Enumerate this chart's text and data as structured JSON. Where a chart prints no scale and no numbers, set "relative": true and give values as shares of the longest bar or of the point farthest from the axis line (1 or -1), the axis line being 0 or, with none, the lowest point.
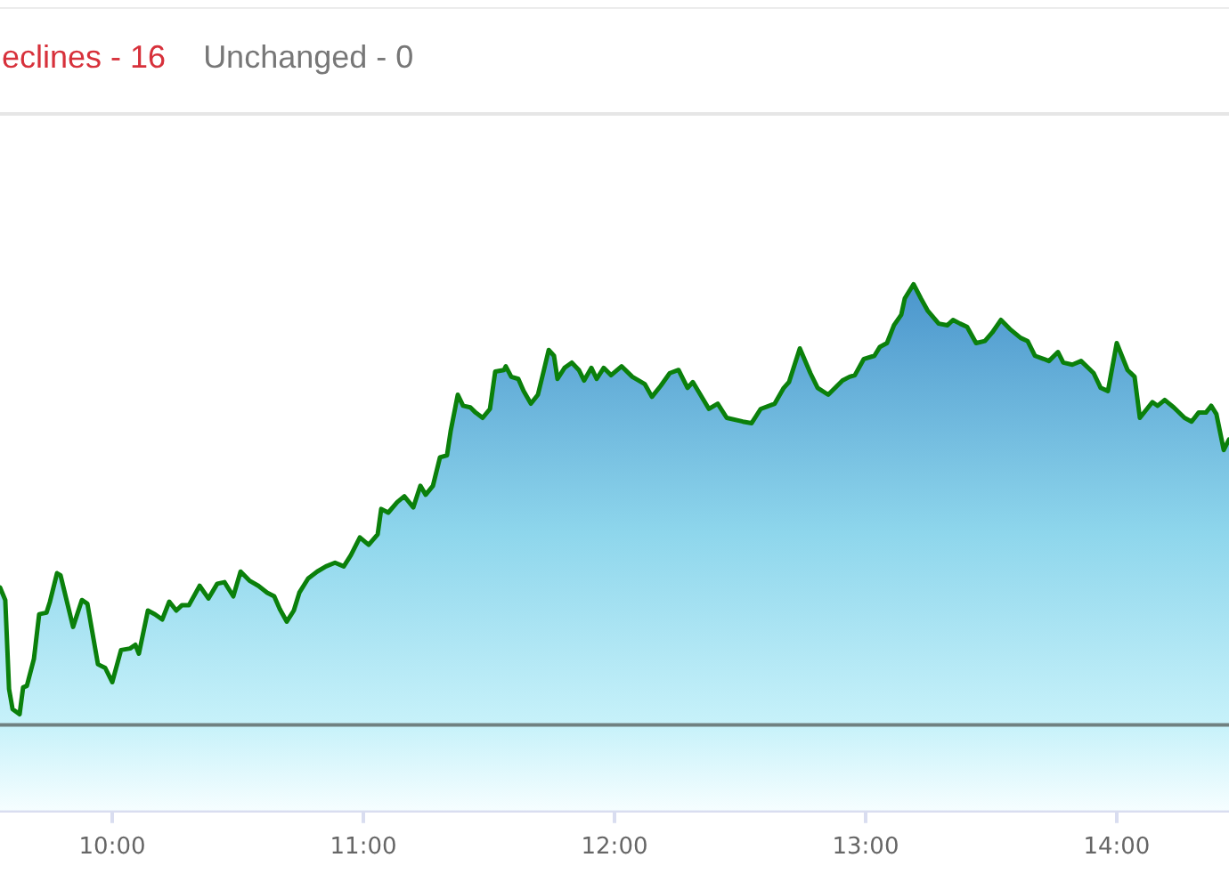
{
  "chart_data": {
    "type": "area",
    "annotations": [
      "eclines - 16",
      "Unchanged - 0"
    ],
    "relative": true,
    "x": [
      9.553,
      9.574,
      9.589,
      9.603,
      9.631,
      9.645,
      9.66,
      9.688,
      9.709,
      9.738,
      9.752,
      9.78,
      9.794,
      9.844,
      9.879,
      9.901,
      9.943,
      9.972,
      10.0,
      10.035,
      10.071,
      10.092,
      10.106,
      10.142,
      10.17,
      10.199,
      10.227,
      10.255,
      10.277,
      10.305,
      10.348,
      10.383,
      10.418,
      10.447,
      10.482,
      10.511,
      10.546,
      10.582,
      10.617,
      10.645,
      10.667,
      10.695,
      10.723,
      10.745,
      10.78,
      10.816,
      10.851,
      10.887,
      10.922,
      10.95,
      10.986,
      11.021,
      11.057,
      11.071,
      11.099,
      11.135,
      11.163,
      11.199,
      11.227,
      11.248,
      11.277,
      11.305,
      11.333,
      11.348,
      11.376,
      11.397,
      11.426,
      11.447,
      11.475,
      11.504,
      11.525,
      11.56,
      11.567,
      11.589,
      11.617,
      11.638,
      11.667,
      11.695,
      11.716,
      11.738,
      11.759,
      11.773,
      11.801,
      11.83,
      11.858,
      11.879,
      11.908,
      11.929,
      11.957,
      11.986,
      12.028,
      12.071,
      12.121,
      12.149,
      12.184,
      12.22,
      12.255,
      12.291,
      12.312,
      12.376,
      12.411,
      12.447,
      12.511,
      12.546,
      12.582,
      12.638,
      12.674,
      12.695,
      12.738,
      12.78,
      12.809,
      12.851,
      12.908,
      12.936,
      12.957,
      12.993,
      13.035,
      13.057,
      13.085,
      13.113,
      13.142,
      13.156,
      13.191,
      13.22,
      13.248,
      13.291,
      13.326,
      13.348,
      13.376,
      13.404,
      13.44,
      13.475,
      13.504,
      13.539,
      13.574,
      13.617,
      13.645,
      13.674,
      13.709,
      13.73,
      13.766,
      13.787,
      13.823,
      13.858,
      13.908,
      13.936,
      13.965,
      14.0,
      14.043,
      14.071,
      14.092,
      14.142,
      14.163,
      14.191,
      14.227,
      14.27,
      14.298,
      14.326,
      14.355,
      14.376,
      14.397,
      14.426,
      14.447
    ],
    "xlim": [
      9.553,
      14.447
    ],
    "xticks": [
      {
        "value": 10,
        "label": "10:00"
      },
      {
        "value": 11,
        "label": "11:00"
      },
      {
        "value": 12,
        "label": "12:00"
      },
      {
        "value": 13,
        "label": "13:00"
      },
      {
        "value": 14,
        "label": "14:00"
      }
    ],
    "series": [
      {
        "color": "#0b800b",
        "values": [
          0.424,
          0.4,
          0.231,
          0.193,
          0.183,
          0.234,
          0.237,
          0.288,
          0.373,
          0.376,
          0.397,
          0.451,
          0.447,
          0.349,
          0.4,
          0.393,
          0.278,
          0.271,
          0.244,
          0.305,
          0.308,
          0.315,
          0.298,
          0.38,
          0.373,
          0.363,
          0.397,
          0.38,
          0.39,
          0.39,
          0.427,
          0.403,
          0.431,
          0.434,
          0.407,
          0.454,
          0.437,
          0.427,
          0.414,
          0.407,
          0.383,
          0.359,
          0.38,
          0.414,
          0.441,
          0.454,
          0.464,
          0.471,
          0.464,
          0.485,
          0.519,
          0.505,
          0.525,
          0.573,
          0.566,
          0.586,
          0.597,
          0.576,
          0.617,
          0.6,
          0.617,
          0.671,
          0.675,
          0.722,
          0.79,
          0.769,
          0.766,
          0.756,
          0.746,
          0.763,
          0.834,
          0.837,
          0.844,
          0.824,
          0.82,
          0.797,
          0.773,
          0.79,
          0.831,
          0.875,
          0.864,
          0.82,
          0.841,
          0.851,
          0.837,
          0.817,
          0.841,
          0.82,
          0.841,
          0.827,
          0.844,
          0.824,
          0.81,
          0.786,
          0.807,
          0.831,
          0.837,
          0.803,
          0.814,
          0.763,
          0.773,
          0.746,
          0.739,
          0.736,
          0.763,
          0.773,
          0.803,
          0.814,
          0.878,
          0.831,
          0.803,
          0.79,
          0.817,
          0.824,
          0.827,
          0.858,
          0.864,
          0.881,
          0.888,
          0.922,
          0.942,
          0.973,
          1,
          0.973,
          0.949,
          0.925,
          0.922,
          0.932,
          0.925,
          0.919,
          0.888,
          0.892,
          0.908,
          0.932,
          0.915,
          0.898,
          0.892,
          0.864,
          0.858,
          0.854,
          0.871,
          0.851,
          0.847,
          0.854,
          0.831,
          0.803,
          0.797,
          0.888,
          0.837,
          0.824,
          0.746,
          0.776,
          0.769,
          0.78,
          0.766,
          0.746,
          0.739,
          0.756,
          0.756,
          0.769,
          0.753,
          0.685,
          0.705
        ]
      }
    ],
    "ref_lines": [
      {
        "axis": "y",
        "value": 0.163,
        "color": "#708080"
      }
    ]
  }
}
